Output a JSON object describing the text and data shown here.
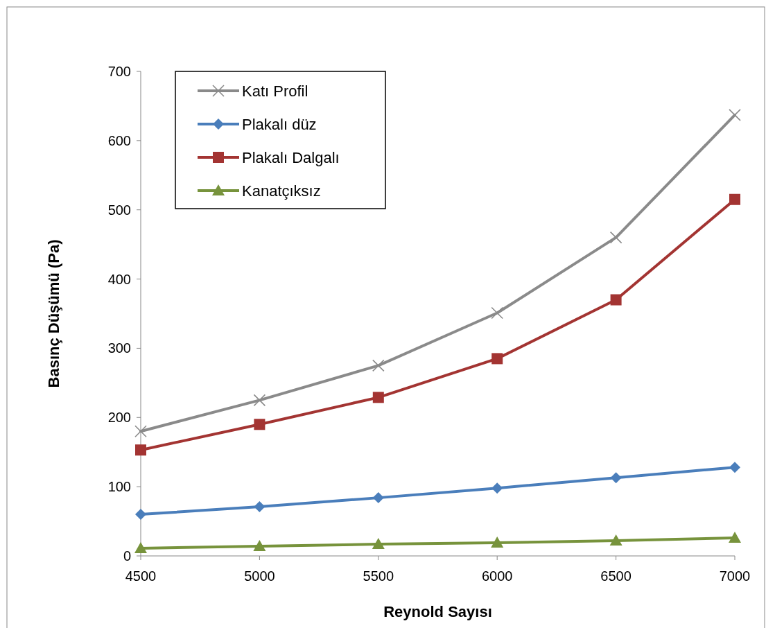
{
  "chart_data": {
    "type": "line",
    "xlabel": "Reynold Sayısı",
    "ylabel": "Basınç Düşümü (Pa)",
    "x": [
      4500,
      5000,
      5500,
      6000,
      6500,
      7000
    ],
    "xlim": [
      4500,
      7000
    ],
    "xticks": [
      4500,
      5000,
      5500,
      6000,
      6500,
      7000
    ],
    "ylim": [
      0,
      700
    ],
    "yticks": [
      0,
      100,
      200,
      300,
      400,
      500,
      600,
      700
    ],
    "legend": "top left",
    "grid": false,
    "series": [
      {
        "name": "Katı Profil",
        "color": "#8a8a8a",
        "marker": "cross",
        "values": [
          180,
          225,
          275,
          351,
          460,
          637
        ]
      },
      {
        "name": "Plakalı düz",
        "color": "#4a7ebb",
        "marker": "diamond",
        "values": [
          60,
          71,
          84,
          98,
          113,
          128
        ]
      },
      {
        "name": "Plakalı Dalgalı",
        "color": "#a33432",
        "marker": "square",
        "values": [
          153,
          190,
          229,
          285,
          370,
          515
        ]
      },
      {
        "name": "Kanatçıksız",
        "color": "#77933c",
        "marker": "triangle",
        "values": [
          11,
          14,
          17,
          19,
          22,
          26
        ]
      }
    ]
  }
}
